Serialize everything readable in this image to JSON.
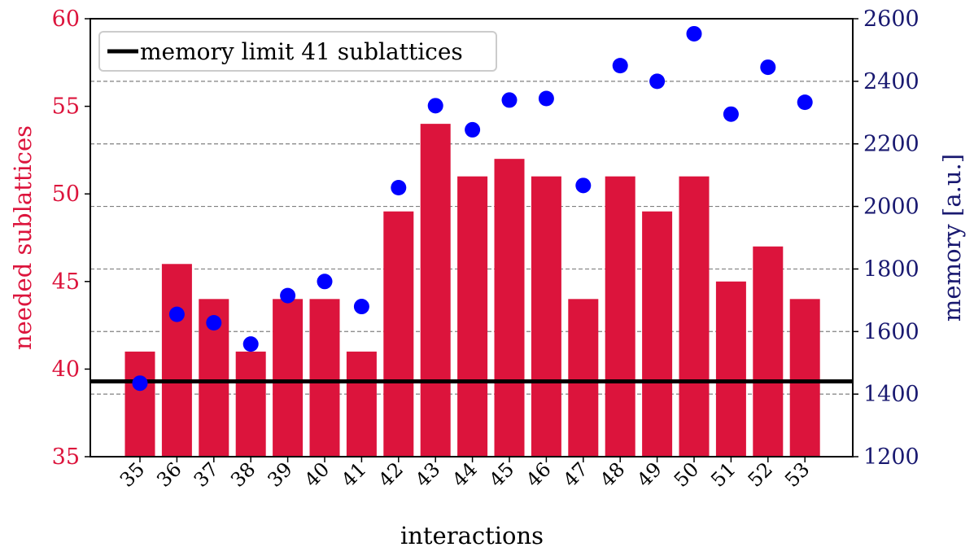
{
  "chart_data": {
    "type": "bar",
    "xlabel": "interactions",
    "ylabel_left": "needed sublattices",
    "ylabel_right": "memory [a.u.]",
    "categories": [
      "35",
      "36",
      "37",
      "38",
      "39",
      "40",
      "41",
      "42",
      "43",
      "44",
      "45",
      "46",
      "47",
      "48",
      "49",
      "50",
      "51",
      "52",
      "53"
    ],
    "series": [
      {
        "name": "needed sublattices",
        "kind": "bar",
        "axis": "left",
        "color": "#dc143c",
        "values": [
          41,
          46,
          44,
          41,
          44,
          44,
          41,
          49,
          54,
          51,
          52,
          51,
          44,
          51,
          49,
          51,
          45,
          47,
          44
        ]
      },
      {
        "name": "memory",
        "kind": "scatter",
        "axis": "right",
        "color": "#0000ff",
        "values": [
          1435,
          1655,
          1628,
          1560,
          1715,
          1760,
          1680,
          2060,
          2322,
          2245,
          2340,
          2345,
          2067,
          2450,
          2400,
          2552,
          2295,
          2445,
          2333
        ]
      }
    ],
    "reference_line": {
      "label": "memory limit 41 sublattices",
      "axis": "left",
      "value": 39.3,
      "color": "#000000"
    },
    "ylim_left": [
      35,
      60
    ],
    "ylim_right": [
      1200,
      2600
    ],
    "yticks_left": [
      "35",
      "40",
      "45",
      "50",
      "55",
      "60"
    ],
    "yticks_right": [
      "1200",
      "1400",
      "1600",
      "1800",
      "2000",
      "2200",
      "2400",
      "2600"
    ],
    "grid": "horizontal dashed at right-axis ticks",
    "legend_position": "top-left",
    "left_axis_color": "#dc143c",
    "right_axis_color": "#191970"
  }
}
